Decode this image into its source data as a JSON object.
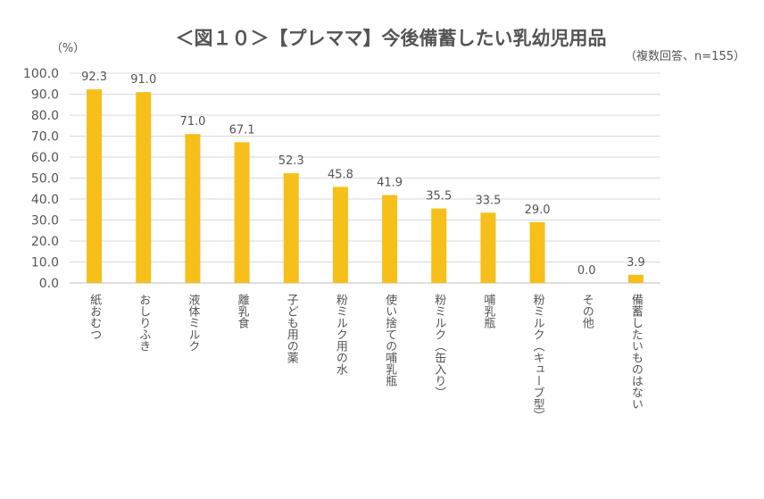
{
  "chart_data": {
    "type": "bar",
    "title": "＜図１０＞【プレママ】今後備蓄したい乳幼児用品",
    "subtitle": "（複数回答、n=155）",
    "ylabel": "（%）",
    "xlabel": "",
    "ylim": [
      0,
      100
    ],
    "y_ticks": [
      "0.0",
      "10.0",
      "20.0",
      "30.0",
      "40.0",
      "50.0",
      "60.0",
      "70.0",
      "80.0",
      "90.0",
      "100.0"
    ],
    "categories": [
      "紙おむつ",
      "おしりふき",
      "液体ミルク",
      "離乳食",
      "子ども用の薬",
      "粉ミルク用の水",
      "使い捨ての哺乳瓶",
      "粉ミルク（缶入り）",
      "哺乳瓶",
      "粉ミルク（キューブ型）",
      "その他",
      "備蓄したいものはない"
    ],
    "values": [
      92.3,
      91.0,
      71.0,
      67.1,
      52.3,
      45.8,
      41.9,
      35.5,
      33.5,
      29.0,
      0.0,
      3.9
    ],
    "value_labels": [
      "92.3",
      "91.0",
      "71.0",
      "67.1",
      "52.3",
      "45.8",
      "41.9",
      "35.5",
      "33.5",
      "29.0",
      "0.0",
      "3.9"
    ],
    "grid": true,
    "legend": "none",
    "bar_color": "#f6bf1a",
    "text_color": "#555555",
    "grid_color": "#d9d9d9"
  }
}
